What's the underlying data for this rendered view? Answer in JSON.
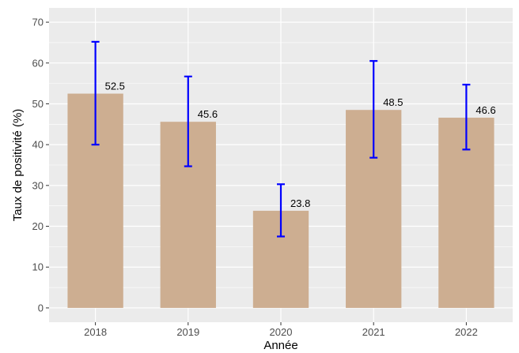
{
  "chart_data": {
    "type": "bar",
    "categories": [
      "2018",
      "2019",
      "2020",
      "2021",
      "2022"
    ],
    "values": [
      52.5,
      45.6,
      23.8,
      48.5,
      46.6
    ],
    "data_labels": [
      "52.5",
      "45.6",
      "23.8",
      "48.5",
      "46.6"
    ],
    "error_low": [
      40,
      34.7,
      17.5,
      36.8,
      38.8
    ],
    "error_high": [
      65.2,
      56.7,
      30.3,
      60.5,
      54.7
    ],
    "xlabel": "Année",
    "ylabel": "Taux de positivité (%)",
    "ylim": [
      -3.5,
      73.5
    ],
    "yticks": [
      0,
      10,
      20,
      30,
      40,
      50,
      60,
      70
    ],
    "ytick_labels": [
      "0",
      "10",
      "20",
      "30",
      "40",
      "50",
      "60",
      "70"
    ],
    "grid": true,
    "colors": {
      "bar": "#cdae91",
      "error_bar": "#0000ff",
      "panel_background": "#ebebeb",
      "grid": "#ffffff"
    }
  }
}
